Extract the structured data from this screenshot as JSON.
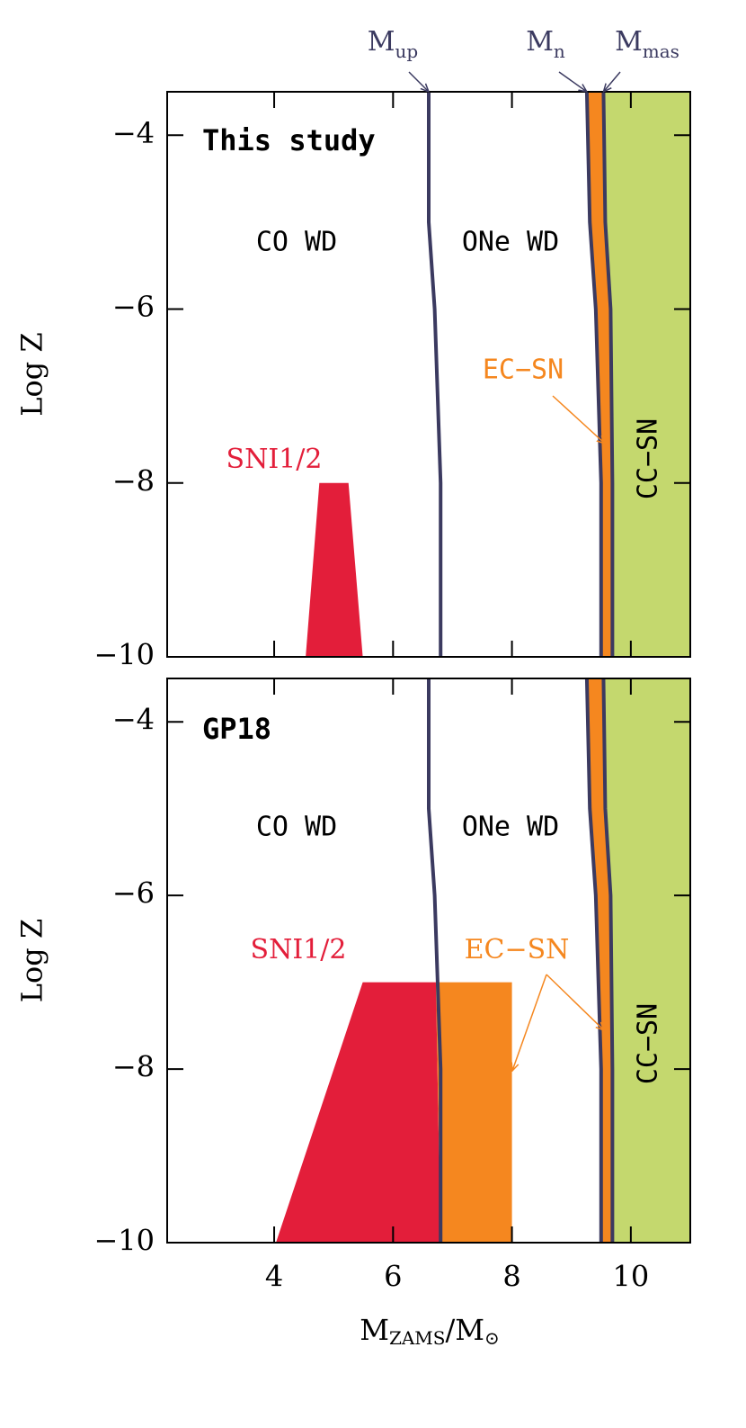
{
  "chart_data": [
    {
      "type": "line",
      "title": "This study",
      "ylabel": "Log Z",
      "xlim": [
        2.2,
        11
      ],
      "ylim": [
        -10,
        -3.5
      ],
      "xticks": [
        4,
        6,
        8,
        10
      ],
      "show_xtick_labels": false,
      "yticks": [
        {
          "value": -4,
          "label": "−4"
        },
        {
          "value": -6,
          "label": "−6"
        },
        {
          "value": -8,
          "label": "−8"
        },
        {
          "value": -10,
          "label": "−10"
        }
      ],
      "series": [
        {
          "name": "M",
          "subscript": "up",
          "color": "#3b3a60",
          "x": [
            6.6,
            6.6,
            6.7,
            6.8,
            6.8
          ],
          "y": [
            -3.5,
            -5,
            -6,
            -8,
            -10
          ]
        },
        {
          "name": "M",
          "subscript": "n",
          "color": "#3b3a60",
          "x": [
            9.26,
            9.31,
            9.41,
            9.5,
            9.5
          ],
          "y": [
            -3.5,
            -5,
            -6,
            -8,
            -10
          ],
          "fill_color": "#f5871f"
        },
        {
          "name": "M",
          "subscript": "mas",
          "color": "#3b3a60",
          "x": [
            9.54,
            9.57,
            9.66,
            9.69,
            9.69
          ],
          "y": [
            -3.5,
            -5,
            -6,
            -8,
            -10
          ],
          "fill_color": "#c4d86e"
        }
      ],
      "regions": [
        {
          "name": "SNI1/2",
          "color": "#e31e3a",
          "x": [
            4.53,
            4.76,
            5.25,
            5.49
          ],
          "y": [
            -10,
            -8,
            -8,
            -10
          ]
        }
      ],
      "annotations": [
        "CO WD",
        "ONe WD",
        "CC−SN",
        "EC−SN"
      ]
    },
    {
      "type": "line",
      "title": "GP18",
      "ylabel": "Log Z",
      "xlabel": "M",
      "xlabel_sub": "ZAMS",
      "xlabel_tail": "/M",
      "xlabel_tail_sub": "⊙",
      "xlim": [
        2.2,
        11
      ],
      "ylim": [
        -10,
        -3.5
      ],
      "xticks": [
        4,
        6,
        8,
        10
      ],
      "show_xtick_labels": true,
      "yticks": [
        {
          "value": -4,
          "label": "−4"
        },
        {
          "value": -6,
          "label": "−6"
        },
        {
          "value": -8,
          "label": "−8"
        },
        {
          "value": -10,
          "label": "−10"
        }
      ],
      "series": [
        {
          "color": "#3b3a60",
          "x": [
            6.6,
            6.6,
            6.7,
            6.8,
            6.8
          ],
          "y": [
            -3.5,
            -5,
            -6,
            -8,
            -10
          ]
        },
        {
          "color": "#3b3a60",
          "x": [
            9.26,
            9.31,
            9.41,
            9.5,
            9.5
          ],
          "y": [
            -3.5,
            -5,
            -6,
            -8,
            -10
          ],
          "fill_color": "#f5871f"
        },
        {
          "color": "#3b3a60",
          "x": [
            9.54,
            9.57,
            9.66,
            9.69,
            9.69
          ],
          "y": [
            -3.5,
            -5,
            -6,
            -8,
            -10
          ],
          "fill_color": "#c4d86e"
        }
      ],
      "regions": [
        {
          "name": "SNI1/2",
          "color": "#e31e3a",
          "x": [
            4.03,
            5.49,
            6.72,
            6.8
          ],
          "y": [
            -10,
            -7,
            -7,
            -10
          ]
        },
        {
          "name": "EC−SN",
          "color": "#f5871f",
          "x": [
            6.72,
            8.0,
            8.0,
            6.8
          ],
          "y": [
            -7,
            -7,
            -10,
            -10
          ]
        }
      ],
      "annotations": [
        "CO WD",
        "ONe WD",
        "CC−SN"
      ]
    }
  ]
}
